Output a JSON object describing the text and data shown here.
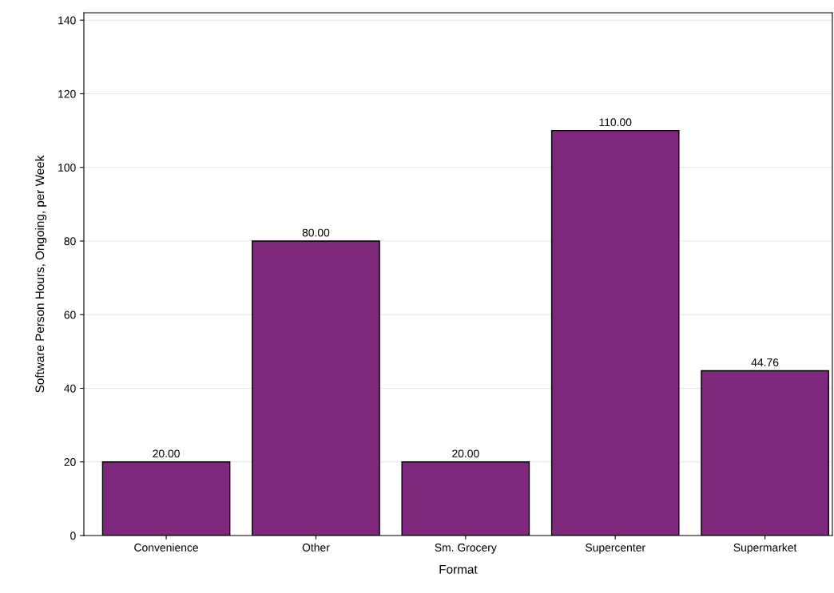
{
  "chart_data": {
    "type": "bar",
    "xlabel": "Format",
    "ylabel": "Software Person Hours, Ongoing, per Week",
    "categories": [
      "Convenience",
      "Other",
      "Sm. Grocery",
      "Supercenter",
      "Supermarket"
    ],
    "values": [
      20.0,
      80.0,
      20.0,
      110.0,
      44.76
    ],
    "value_labels": [
      "20.00",
      "80.00",
      "20.00",
      "110.00",
      "44.76"
    ],
    "color": "#7f277c",
    "ylim": [
      0,
      142
    ],
    "yticks": [
      0,
      20,
      40,
      60,
      80,
      100,
      120,
      140
    ],
    "grid": "y"
  }
}
